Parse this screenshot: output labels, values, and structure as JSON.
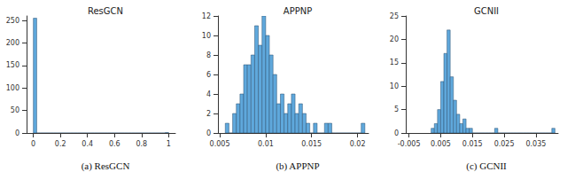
{
  "chart_data": [
    {
      "type": "histogram",
      "title": "ResGCN",
      "caption": "(a) ResGCN",
      "color": "#5fa8dc",
      "bins": [
        0,
        0.025,
        0.05,
        0.075,
        0.1,
        0.125,
        0.15,
        0.175,
        0.2,
        0.225,
        0.25,
        0.275,
        0.3,
        0.325,
        0.35,
        0.375,
        0.4,
        0.425,
        0.45,
        0.475,
        0.5,
        0.525,
        0.55,
        0.575,
        0.6,
        0.625,
        0.65,
        0.675,
        0.7,
        0.725,
        0.75,
        0.775,
        0.8,
        0.825,
        0.85,
        0.875,
        0.9,
        0.925,
        0.95,
        0.975,
        1
      ],
      "counts": [
        255,
        0,
        0,
        0,
        0,
        0,
        0,
        0,
        0,
        0,
        0,
        0,
        0,
        0,
        0,
        0,
        0,
        0,
        0,
        0,
        0,
        0,
        0,
        0,
        0,
        0,
        0,
        0,
        0,
        0,
        0,
        0,
        0,
        0,
        0,
        0,
        0,
        0,
        0,
        1
      ],
      "xlim": [
        -0.05,
        1.05
      ],
      "xticks": [
        0,
        0.2,
        0.4,
        0.6,
        0.8,
        1
      ],
      "ylim": [
        0,
        260
      ],
      "yticks": [
        0,
        50,
        100,
        150,
        200,
        250
      ],
      "grid": false
    },
    {
      "type": "histogram",
      "title": "APPNP",
      "caption": "(b) APPNP",
      "color": "#5fa8dc",
      "bins": [
        0.0056,
        0.006,
        0.0064,
        0.0068,
        0.0072,
        0.0076,
        0.008,
        0.0084,
        0.0088,
        0.0092,
        0.0096,
        0.01,
        0.0104,
        0.0108,
        0.0112,
        0.0116,
        0.012,
        0.0124,
        0.0128,
        0.0132,
        0.0136,
        0.014,
        0.0144,
        0.0148,
        0.0152,
        0.0156,
        0.016,
        0.0164,
        0.0168,
        0.0172,
        0.0176,
        0.018,
        0.0184,
        0.0188,
        0.0192,
        0.0196,
        0.02,
        0.0204,
        0.0208
      ],
      "counts": [
        1,
        0,
        2,
        3,
        4,
        7,
        7,
        8,
        11,
        9,
        12,
        10,
        8,
        6,
        3,
        4,
        2,
        3,
        4,
        2,
        3,
        2,
        1,
        0,
        1,
        0,
        0,
        1,
        1,
        0,
        0,
        0,
        0,
        0,
        0,
        0,
        0,
        1
      ],
      "xlim": [
        0.0048,
        0.0212
      ],
      "xticks": [
        0.005,
        0.01,
        0.015,
        0.02
      ],
      "ylim": [
        0,
        12
      ],
      "yticks": [
        0,
        2,
        4,
        6,
        8,
        10,
        12
      ],
      "grid": false
    },
    {
      "type": "histogram",
      "title": "GCNII",
      "caption": "(c) GCNII",
      "color": "#5fa8dc",
      "bins": [
        0.002,
        0.003,
        0.004,
        0.005,
        0.006,
        0.007,
        0.008,
        0.009,
        0.01,
        0.011,
        0.012,
        0.013,
        0.014,
        0.015,
        0.016,
        0.017,
        0.018,
        0.019,
        0.02,
        0.021,
        0.022,
        0.023,
        0.024,
        0.025,
        0.026,
        0.027,
        0.028,
        0.029,
        0.03,
        0.031,
        0.032,
        0.033,
        0.034,
        0.035,
        0.036,
        0.037,
        0.038,
        0.039,
        0.04,
        0.041
      ],
      "counts": [
        1,
        2,
        5,
        11,
        17,
        22,
        12,
        7,
        4,
        2,
        3,
        1,
        1,
        0,
        0,
        0,
        0,
        0,
        0,
        0,
        1,
        0,
        0,
        0,
        0,
        0,
        0,
        0,
        0,
        0,
        0,
        0,
        0,
        0,
        0,
        0,
        0,
        0,
        1
      ],
      "xlim": [
        -0.006,
        0.042
      ],
      "xticks": [
        -0.005,
        0.005,
        0.015,
        0.025,
        0.035
      ],
      "ylim": [
        0,
        25
      ],
      "yticks": [
        0,
        5,
        10,
        15,
        20,
        25
      ],
      "grid": false
    }
  ]
}
